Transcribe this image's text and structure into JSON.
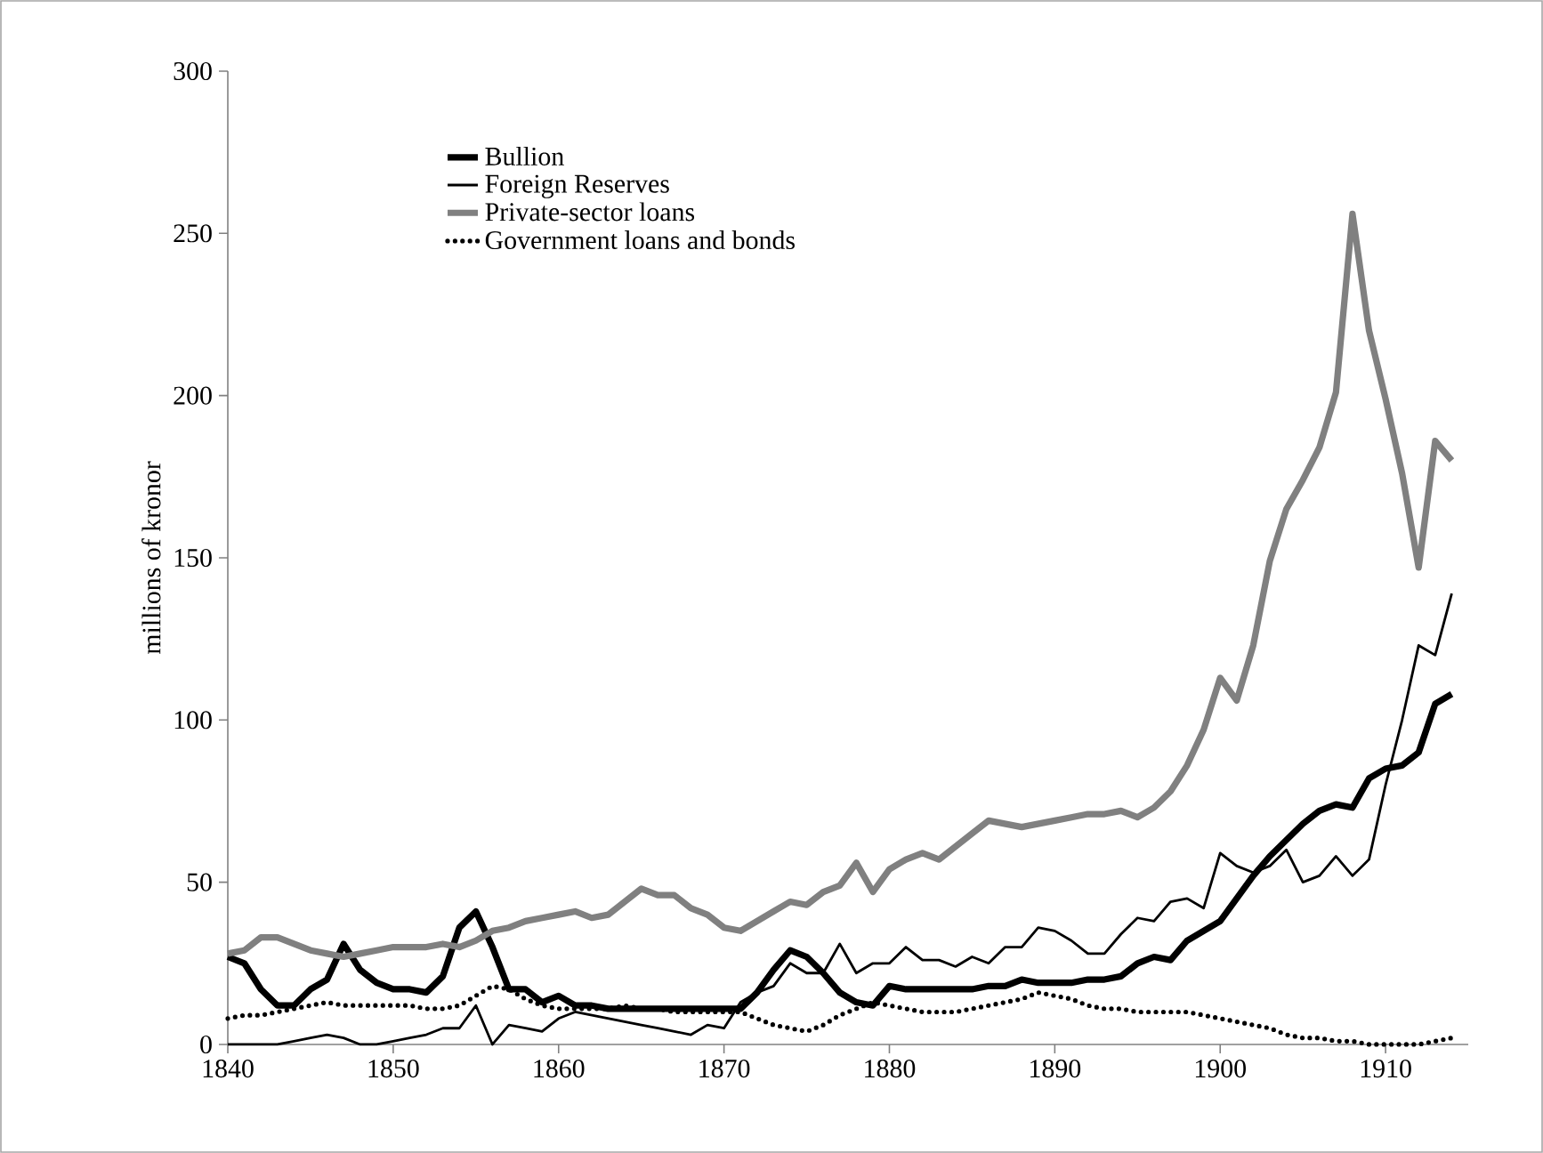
{
  "chart_data": {
    "type": "line",
    "ylabel": "millions of kronor",
    "x": [
      1840,
      1841,
      1842,
      1843,
      1844,
      1845,
      1846,
      1847,
      1848,
      1849,
      1850,
      1851,
      1852,
      1853,
      1854,
      1855,
      1856,
      1857,
      1858,
      1859,
      1860,
      1861,
      1862,
      1863,
      1864,
      1865,
      1866,
      1867,
      1868,
      1869,
      1870,
      1871,
      1872,
      1873,
      1874,
      1875,
      1876,
      1877,
      1878,
      1879,
      1880,
      1881,
      1882,
      1883,
      1884,
      1885,
      1886,
      1887,
      1888,
      1889,
      1890,
      1891,
      1892,
      1893,
      1894,
      1895,
      1896,
      1897,
      1898,
      1899,
      1900,
      1901,
      1902,
      1903,
      1904,
      1905,
      1906,
      1907,
      1908,
      1909,
      1910,
      1911,
      1912,
      1913,
      1914
    ],
    "series": [
      {
        "name": "Bullion",
        "color": "#000000",
        "line_style": "solid",
        "values": [
          27,
          25,
          17,
          12,
          12,
          17,
          20,
          31,
          23,
          19,
          17,
          17,
          16,
          21,
          36,
          41,
          30,
          17,
          17,
          13,
          15,
          12,
          12,
          11,
          11,
          11,
          11,
          11,
          11,
          11,
          11,
          11,
          16,
          23,
          29,
          27,
          22,
          16,
          13,
          12,
          18,
          17,
          17,
          17,
          17,
          17,
          18,
          18,
          20,
          19,
          19,
          19,
          20,
          20,
          21,
          25,
          27,
          26,
          32,
          35,
          38,
          45,
          52,
          58,
          63,
          68,
          72,
          74,
          73,
          82,
          85,
          86,
          90,
          105,
          108
        ]
      },
      {
        "name": "Foreign Reserves",
        "color": "#000000",
        "line_style": "solid",
        "values": [
          0,
          0,
          0,
          0,
          1,
          2,
          3,
          2,
          0,
          0,
          1,
          2,
          3,
          5,
          5,
          12,
          0,
          6,
          5,
          4,
          8,
          10,
          9,
          8,
          7,
          6,
          5,
          4,
          3,
          6,
          5,
          13,
          16,
          18,
          25,
          22,
          22,
          31,
          22,
          25,
          25,
          30,
          26,
          26,
          24,
          27,
          25,
          30,
          30,
          36,
          35,
          32,
          28,
          28,
          34,
          39,
          38,
          44,
          45,
          42,
          59,
          55,
          53,
          55,
          60,
          50,
          52,
          58,
          52,
          57,
          80,
          100,
          123,
          120,
          139
        ]
      },
      {
        "name": "Private-sector loans",
        "color": "#808080",
        "line_style": "solid",
        "values": [
          28,
          29,
          33,
          33,
          31,
          29,
          28,
          27,
          28,
          29,
          30,
          30,
          30,
          31,
          30,
          32,
          35,
          36,
          38,
          39,
          40,
          41,
          39,
          40,
          44,
          48,
          46,
          46,
          42,
          40,
          36,
          35,
          38,
          41,
          44,
          43,
          47,
          49,
          56,
          47,
          54,
          57,
          59,
          57,
          61,
          65,
          69,
          68,
          67,
          68,
          69,
          70,
          71,
          71,
          72,
          70,
          73,
          78,
          86,
          97,
          113,
          106,
          123,
          149,
          165,
          174,
          184,
          201,
          256,
          220,
          199,
          176,
          147,
          186,
          180
        ]
      },
      {
        "name": "Government loans and bonds",
        "color": "#000000",
        "line_style": "dotted",
        "values": [
          8,
          9,
          9,
          10,
          11,
          12,
          13,
          12,
          12,
          12,
          12,
          12,
          11,
          11,
          12,
          15,
          18,
          17,
          14,
          12,
          11,
          11,
          11,
          11,
          12,
          11,
          11,
          10,
          10,
          10,
          10,
          10,
          8,
          6,
          5,
          4,
          6,
          9,
          11,
          13,
          12,
          11,
          10,
          10,
          10,
          11,
          12,
          13,
          14,
          16,
          15,
          14,
          12,
          11,
          11,
          10,
          10,
          10,
          10,
          9,
          8,
          7,
          6,
          5,
          3,
          2,
          2,
          1,
          1,
          0,
          0,
          0,
          0,
          1,
          2
        ]
      }
    ],
    "xlim": [
      1840,
      1915
    ],
    "ylim": [
      0,
      300
    ],
    "xticks": [
      1840,
      1850,
      1860,
      1870,
      1880,
      1890,
      1900,
      1910
    ],
    "yticks": [
      0,
      50,
      100,
      150,
      200,
      250,
      300
    ],
    "grid": false,
    "legend": "top left"
  }
}
